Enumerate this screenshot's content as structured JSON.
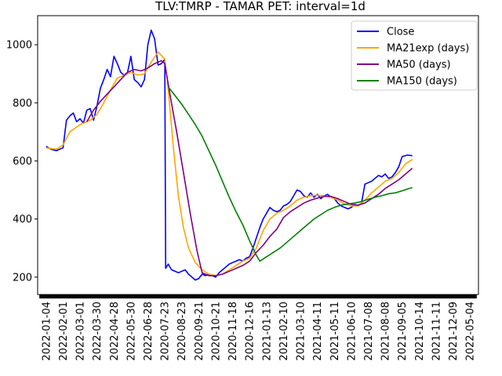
{
  "chart_data": {
    "type": "line",
    "title": "TLV:TMRP - TAMAR PET: interval=1d",
    "xlabel": "",
    "ylabel": "",
    "ylim": [
      140,
      1100
    ],
    "yticks": [
      200,
      400,
      600,
      800,
      1000
    ],
    "x_categories": [
      "2022-01-04",
      "2022-02-01",
      "2022-03-01",
      "2022-03-30",
      "2022-04-28",
      "2022-05-30",
      "2022-06-28",
      "2020-07-23",
      "2020-08-23",
      "2020-09-21",
      "2020-10-21",
      "2020-11-18",
      "2020-12-16",
      "2021-01-13",
      "2021-02-10",
      "2021-03-10",
      "2021-04-11",
      "2021-05-11",
      "2021-06-10",
      "2021-07-08",
      "2021-08-08",
      "2021-09-05",
      "2021-10-14",
      "2021-11-11",
      "2021-12-09",
      "2022-05-04"
    ],
    "legend_position": "upper right",
    "grid": false,
    "series": [
      {
        "name": "Close",
        "color": "#0000ff",
        "points": [
          [
            0,
            650
          ],
          [
            0.3,
            640
          ],
          [
            0.6,
            635
          ],
          [
            1,
            645
          ],
          [
            1.2,
            740
          ],
          [
            1.4,
            755
          ],
          [
            1.6,
            765
          ],
          [
            1.8,
            735
          ],
          [
            2,
            745
          ],
          [
            2.2,
            730
          ],
          [
            2.4,
            775
          ],
          [
            2.6,
            780
          ],
          [
            2.8,
            740
          ],
          [
            3,
            790
          ],
          [
            3.2,
            850
          ],
          [
            3.4,
            880
          ],
          [
            3.6,
            915
          ],
          [
            3.8,
            890
          ],
          [
            4,
            960
          ],
          [
            4.2,
            935
          ],
          [
            4.4,
            905
          ],
          [
            4.6,
            895
          ],
          [
            4.8,
            905
          ],
          [
            5,
            960
          ],
          [
            5.2,
            880
          ],
          [
            5.4,
            870
          ],
          [
            5.6,
            855
          ],
          [
            5.8,
            880
          ],
          [
            6,
            1000
          ],
          [
            6.2,
            1050
          ],
          [
            6.4,
            1020
          ],
          [
            6.6,
            930
          ],
          [
            6.8,
            935
          ],
          [
            7,
            950
          ],
          [
            7.05,
            230
          ],
          [
            7.2,
            245
          ],
          [
            7.4,
            225
          ],
          [
            7.6,
            220
          ],
          [
            7.8,
            215
          ],
          [
            8,
            220
          ],
          [
            8.2,
            225
          ],
          [
            8.4,
            210
          ],
          [
            8.6,
            200
          ],
          [
            8.8,
            190
          ],
          [
            9,
            195
          ],
          [
            9.2,
            210
          ],
          [
            9.4,
            205
          ],
          [
            9.6,
            210
          ],
          [
            9.8,
            205
          ],
          [
            10,
            200
          ],
          [
            10.2,
            215
          ],
          [
            10.4,
            225
          ],
          [
            10.6,
            235
          ],
          [
            10.8,
            245
          ],
          [
            11,
            250
          ],
          [
            11.2,
            255
          ],
          [
            11.4,
            260
          ],
          [
            11.6,
            255
          ],
          [
            11.8,
            265
          ],
          [
            12,
            270
          ],
          [
            12.2,
            300
          ],
          [
            12.4,
            335
          ],
          [
            12.6,
            370
          ],
          [
            12.8,
            400
          ],
          [
            13,
            420
          ],
          [
            13.2,
            440
          ],
          [
            13.4,
            430
          ],
          [
            13.6,
            425
          ],
          [
            13.8,
            430
          ],
          [
            14,
            445
          ],
          [
            14.2,
            450
          ],
          [
            14.4,
            460
          ],
          [
            14.6,
            480
          ],
          [
            14.8,
            500
          ],
          [
            15,
            495
          ],
          [
            15.2,
            480
          ],
          [
            15.4,
            475
          ],
          [
            15.6,
            490
          ],
          [
            15.8,
            475
          ],
          [
            16,
            485
          ],
          [
            16.2,
            470
          ],
          [
            16.4,
            480
          ],
          [
            16.6,
            485
          ],
          [
            16.8,
            475
          ],
          [
            17,
            470
          ],
          [
            17.2,
            455
          ],
          [
            17.4,
            445
          ],
          [
            17.6,
            440
          ],
          [
            17.8,
            435
          ],
          [
            18,
            440
          ],
          [
            18.2,
            450
          ],
          [
            18.4,
            445
          ],
          [
            18.6,
            455
          ],
          [
            18.8,
            520
          ],
          [
            19,
            525
          ],
          [
            19.2,
            530
          ],
          [
            19.4,
            540
          ],
          [
            19.6,
            550
          ],
          [
            19.8,
            545
          ],
          [
            20,
            555
          ],
          [
            20.2,
            540
          ],
          [
            20.4,
            545
          ],
          [
            20.6,
            560
          ],
          [
            20.8,
            580
          ],
          [
            21,
            615
          ],
          [
            21.3,
            620
          ],
          [
            21.6,
            618
          ]
        ]
      },
      {
        "name": "MA21exp (days)",
        "color": "#ffa500",
        "points": [
          [
            0,
            645
          ],
          [
            0.6,
            640
          ],
          [
            1,
            655
          ],
          [
            1.4,
            700
          ],
          [
            2,
            725
          ],
          [
            2.6,
            740
          ],
          [
            3,
            760
          ],
          [
            3.4,
            800
          ],
          [
            3.8,
            845
          ],
          [
            4.2,
            885
          ],
          [
            4.6,
            895
          ],
          [
            5,
            905
          ],
          [
            5.4,
            895
          ],
          [
            5.8,
            900
          ],
          [
            6.2,
            940
          ],
          [
            6.6,
            975
          ],
          [
            7,
            950
          ],
          [
            7.2,
            850
          ],
          [
            7.5,
            650
          ],
          [
            7.8,
            480
          ],
          [
            8.1,
            370
          ],
          [
            8.4,
            300
          ],
          [
            8.8,
            250
          ],
          [
            9.2,
            225
          ],
          [
            9.6,
            210
          ],
          [
            10,
            205
          ],
          [
            10.4,
            210
          ],
          [
            10.8,
            225
          ],
          [
            11.2,
            240
          ],
          [
            11.6,
            255
          ],
          [
            12,
            265
          ],
          [
            12.4,
            300
          ],
          [
            12.8,
            360
          ],
          [
            13.2,
            400
          ],
          [
            13.6,
            420
          ],
          [
            14,
            430
          ],
          [
            14.4,
            445
          ],
          [
            14.8,
            465
          ],
          [
            15.2,
            475
          ],
          [
            15.6,
            480
          ],
          [
            16,
            482
          ],
          [
            16.4,
            480
          ],
          [
            16.8,
            475
          ],
          [
            17.2,
            465
          ],
          [
            17.6,
            452
          ],
          [
            18,
            445
          ],
          [
            18.4,
            445
          ],
          [
            18.8,
            465
          ],
          [
            19.2,
            490
          ],
          [
            19.6,
            510
          ],
          [
            20,
            530
          ],
          [
            20.4,
            540
          ],
          [
            20.8,
            560
          ],
          [
            21.2,
            590
          ],
          [
            21.6,
            605
          ]
        ]
      },
      {
        "name": "MA50 (days)",
        "color": "#800080",
        "points": [
          [
            2.4,
            735
          ],
          [
            2.8,
            775
          ],
          [
            3.2,
            805
          ],
          [
            3.6,
            830
          ],
          [
            4,
            855
          ],
          [
            4.4,
            880
          ],
          [
            4.8,
            905
          ],
          [
            5.2,
            915
          ],
          [
            5.6,
            910
          ],
          [
            6,
            920
          ],
          [
            6.4,
            935
          ],
          [
            6.8,
            945
          ],
          [
            7,
            935
          ],
          [
            7.3,
            830
          ],
          [
            7.7,
            700
          ],
          [
            8.1,
            560
          ],
          [
            8.5,
            420
          ],
          [
            8.9,
            290
          ],
          [
            9.2,
            215
          ],
          [
            9.6,
            205
          ],
          [
            10,
            205
          ],
          [
            10.4,
            210
          ],
          [
            10.8,
            220
          ],
          [
            11.2,
            230
          ],
          [
            11.6,
            240
          ],
          [
            12,
            255
          ],
          [
            12.4,
            285
          ],
          [
            12.8,
            310
          ],
          [
            13.2,
            340
          ],
          [
            13.6,
            365
          ],
          [
            14,
            405
          ],
          [
            14.4,
            425
          ],
          [
            14.8,
            440
          ],
          [
            15.2,
            455
          ],
          [
            15.6,
            465
          ],
          [
            16,
            472
          ],
          [
            16.4,
            478
          ],
          [
            16.8,
            478
          ],
          [
            17.2,
            470
          ],
          [
            17.6,
            460
          ],
          [
            18,
            450
          ],
          [
            18.4,
            448
          ],
          [
            18.8,
            455
          ],
          [
            19.2,
            470
          ],
          [
            19.6,
            485
          ],
          [
            20,
            505
          ],
          [
            20.4,
            520
          ],
          [
            20.8,
            535
          ],
          [
            21.2,
            555
          ],
          [
            21.6,
            575
          ]
        ]
      },
      {
        "name": "MA150 (days)",
        "color": "#008000",
        "points": [
          [
            7.2,
            855
          ],
          [
            7.6,
            825
          ],
          [
            8,
            795
          ],
          [
            8.4,
            760
          ],
          [
            8.8,
            725
          ],
          [
            9.2,
            685
          ],
          [
            9.6,
            635
          ],
          [
            10,
            585
          ],
          [
            10.4,
            530
          ],
          [
            10.8,
            475
          ],
          [
            11.2,
            425
          ],
          [
            11.6,
            380
          ],
          [
            12,
            325
          ],
          [
            12.4,
            275
          ],
          [
            12.6,
            255
          ],
          [
            13,
            270
          ],
          [
            13.4,
            285
          ],
          [
            13.8,
            300
          ],
          [
            14.2,
            320
          ],
          [
            14.6,
            340
          ],
          [
            15,
            360
          ],
          [
            15.4,
            380
          ],
          [
            15.8,
            400
          ],
          [
            16.2,
            415
          ],
          [
            16.6,
            430
          ],
          [
            17,
            440
          ],
          [
            17.4,
            448
          ],
          [
            17.8,
            452
          ],
          [
            18.2,
            455
          ],
          [
            18.6,
            460
          ],
          [
            19,
            468
          ],
          [
            19.4,
            475
          ],
          [
            19.8,
            480
          ],
          [
            20.2,
            487
          ],
          [
            20.6,
            490
          ],
          [
            21,
            497
          ],
          [
            21.4,
            505
          ],
          [
            21.6,
            508
          ]
        ]
      }
    ]
  }
}
